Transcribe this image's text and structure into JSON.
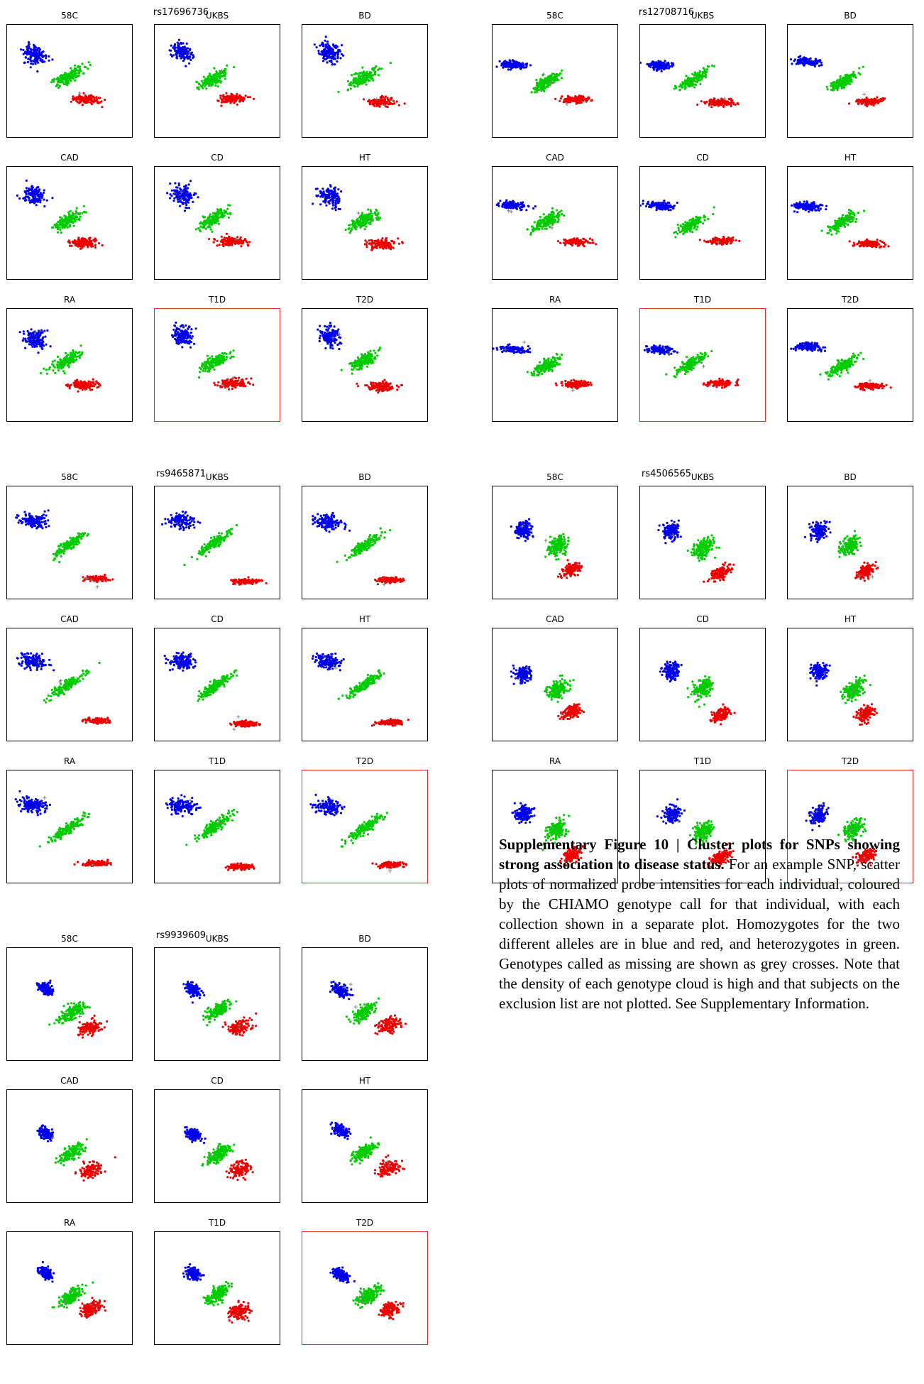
{
  "figure": {
    "groups": [
      {
        "snp": "rs17696736",
        "panels": [
          {
            "label": "58C",
            "highlight": false
          },
          {
            "label": "UKBS",
            "highlight": false
          },
          {
            "label": "BD",
            "highlight": false
          },
          {
            "label": "CAD",
            "highlight": false
          },
          {
            "label": "CD",
            "highlight": false
          },
          {
            "label": "HT",
            "highlight": false
          },
          {
            "label": "RA",
            "highlight": false
          },
          {
            "label": "T1D",
            "highlight": true
          },
          {
            "label": "T2D",
            "highlight": false
          }
        ]
      },
      {
        "snp": "rs12708716",
        "panels": [
          {
            "label": "58C",
            "highlight": false
          },
          {
            "label": "UKBS",
            "highlight": false
          },
          {
            "label": "BD",
            "highlight": false
          },
          {
            "label": "CAD",
            "highlight": false
          },
          {
            "label": "CD",
            "highlight": false
          },
          {
            "label": "HT",
            "highlight": false
          },
          {
            "label": "RA",
            "highlight": false
          },
          {
            "label": "T1D",
            "highlight": true
          },
          {
            "label": "T2D",
            "highlight": false
          }
        ]
      },
      {
        "snp": "rs9465871",
        "panels": [
          {
            "label": "58C",
            "highlight": false
          },
          {
            "label": "UKBS",
            "highlight": false
          },
          {
            "label": "BD",
            "highlight": false
          },
          {
            "label": "CAD",
            "highlight": false
          },
          {
            "label": "CD",
            "highlight": false
          },
          {
            "label": "HT",
            "highlight": false
          },
          {
            "label": "RA",
            "highlight": false
          },
          {
            "label": "T1D",
            "highlight": false
          },
          {
            "label": "T2D",
            "highlight": true
          }
        ]
      },
      {
        "snp": "rs4506565",
        "panels": [
          {
            "label": "58C",
            "highlight": false
          },
          {
            "label": "UKBS",
            "highlight": false
          },
          {
            "label": "BD",
            "highlight": false
          },
          {
            "label": "CAD",
            "highlight": false
          },
          {
            "label": "CD",
            "highlight": false
          },
          {
            "label": "HT",
            "highlight": false
          },
          {
            "label": "RA",
            "highlight": false
          },
          {
            "label": "T1D",
            "highlight": false
          },
          {
            "label": "T2D",
            "highlight": true
          }
        ]
      },
      {
        "snp": "rs9939609",
        "panels": [
          {
            "label": "58C",
            "highlight": false
          },
          {
            "label": "UKBS",
            "highlight": false
          },
          {
            "label": "BD",
            "highlight": false
          },
          {
            "label": "CAD",
            "highlight": false
          },
          {
            "label": "CD",
            "highlight": false
          },
          {
            "label": "HT",
            "highlight": false
          },
          {
            "label": "RA",
            "highlight": false
          },
          {
            "label": "T1D",
            "highlight": false
          },
          {
            "label": "T2D",
            "highlight": true
          }
        ]
      }
    ],
    "colors": {
      "hom_allele_1": "#0000ee",
      "heterozygote": "#00cc00",
      "hom_allele_2": "#ee0000",
      "missing": "#808080",
      "highlight_border": "#e0302a"
    }
  },
  "caption": {
    "bold": "Supplementary Figure 10 | Cluster plots for SNPs showing strong association to disease status.",
    "text": " For an example SNP, scatter plots of normalized probe intensities for each individual, coloured by the CHIAMO genotype call for that individual, with each collection shown in a separate plot. Homozygotes for the two different alleles are in blue and red, and heterozygotes in green. Genotypes called as missing are shown as grey crosses. Note that the density of each genotype cloud is high and that subjects on the exclusion list are not plotted. See Supplementary Information."
  }
}
